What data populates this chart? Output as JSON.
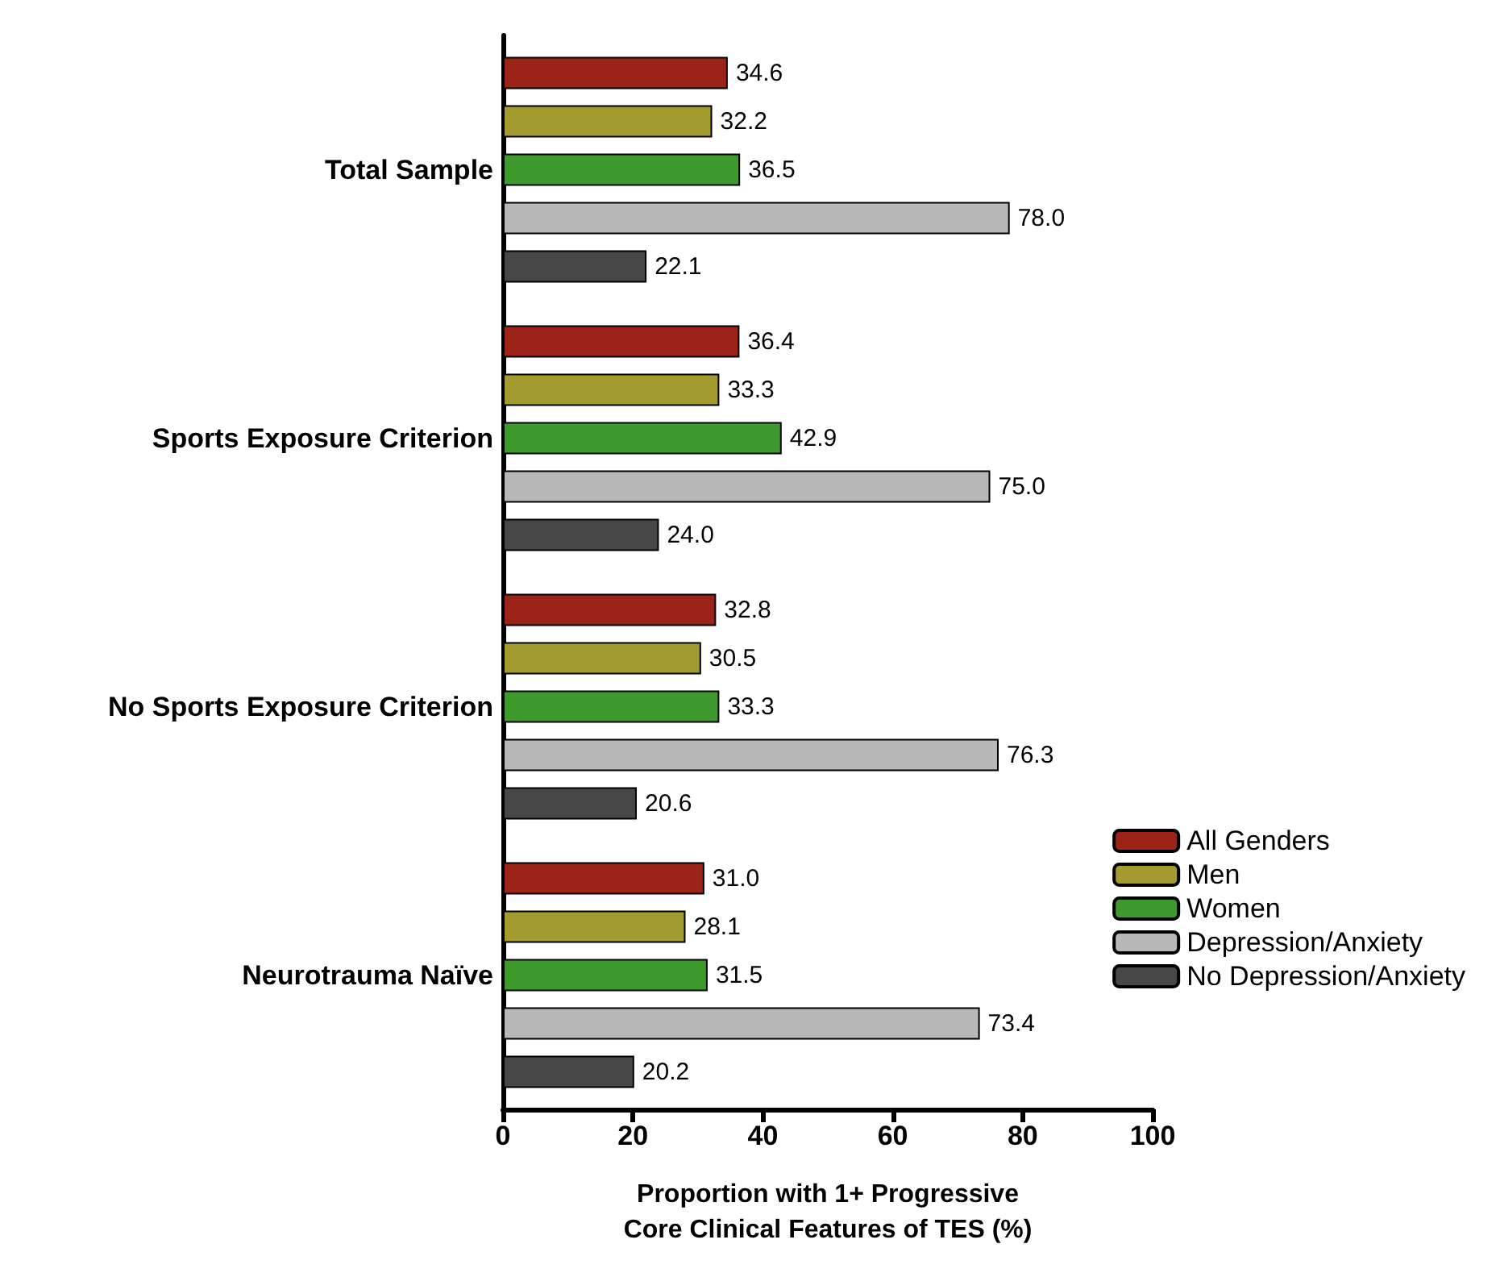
{
  "chart_data": {
    "type": "bar",
    "orientation": "horizontal",
    "xlabel": "Proportion with 1+ Progressive\nCore Clinical Features of TES (%)",
    "categories": [
      "Total Sample",
      "Sports Exposure Criterion",
      "No Sports Exposure Criterion",
      "Neurotrauma Naïve"
    ],
    "series": [
      {
        "name": "All Genders",
        "color": "#9b2318",
        "values": [
          34.6,
          36.4,
          32.8,
          31.0
        ],
        "value_labels": [
          "34.6",
          "36.4",
          "32.8",
          "31.0"
        ]
      },
      {
        "name": "Men",
        "color": "#a39a30",
        "values": [
          32.2,
          33.3,
          30.5,
          28.1
        ],
        "value_labels": [
          "32.2",
          "33.3",
          "30.5",
          "28.1"
        ]
      },
      {
        "name": "Women",
        "color": "#3f9a2e",
        "values": [
          36.5,
          42.9,
          33.3,
          31.5
        ],
        "value_labels": [
          "36.5",
          "42.9",
          "33.3",
          "31.5"
        ]
      },
      {
        "name": "Depression/Anxiety",
        "color": "#b8b8b8",
        "values": [
          78.0,
          75.0,
          76.3,
          73.4
        ],
        "value_labels": [
          "78.0",
          "75.0",
          "76.3",
          "73.4"
        ]
      },
      {
        "name": "No Depression/Anxiety",
        "color": "#474747",
        "values": [
          22.1,
          24.0,
          20.6,
          20.2
        ],
        "value_labels": [
          "22.1",
          "24.0",
          "20.6",
          "20.2"
        ]
      }
    ],
    "xlim": [
      0,
      100
    ],
    "xticks": [
      0,
      20,
      40,
      60,
      80,
      100
    ],
    "grid": false,
    "legend": "right"
  }
}
